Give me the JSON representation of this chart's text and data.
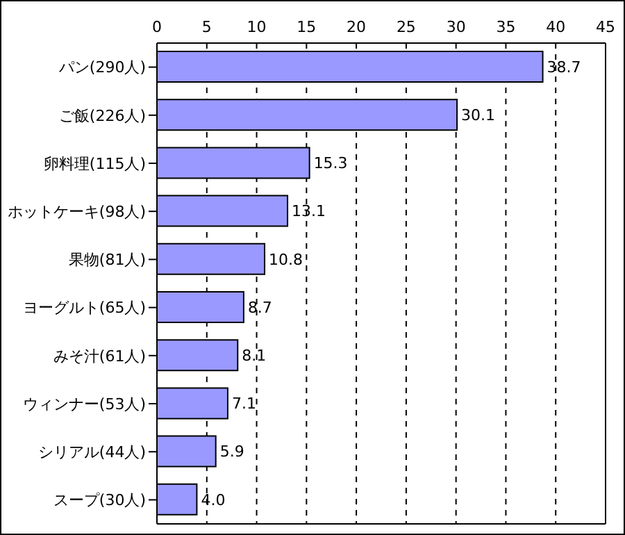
{
  "chart_data": {
    "type": "bar",
    "orientation": "horizontal",
    "categories": [
      "パン(290人)",
      "ご飯(226人)",
      "卵料理(115人)",
      "ホットケーキ(98人)",
      "果物(81人)",
      "ヨーグルト(65人)",
      "みそ汁(61人)",
      "ウィンナー(53人)",
      "シリアル(44人)",
      "スープ(30人)"
    ],
    "values": [
      38.7,
      30.1,
      15.3,
      13.1,
      10.8,
      8.7,
      8.1,
      7.1,
      5.9,
      4.0
    ],
    "value_labels": [
      "38.7",
      "30.1",
      "15.3",
      "13.1",
      "10.8",
      "8.7",
      "8.1",
      "7.1",
      "5.9",
      "4.0"
    ],
    "color": "#9999ff",
    "xlim": [
      0,
      45
    ],
    "xticks": [
      0,
      5,
      10,
      15,
      20,
      25,
      30,
      35,
      40,
      45
    ],
    "grid": "x"
  }
}
